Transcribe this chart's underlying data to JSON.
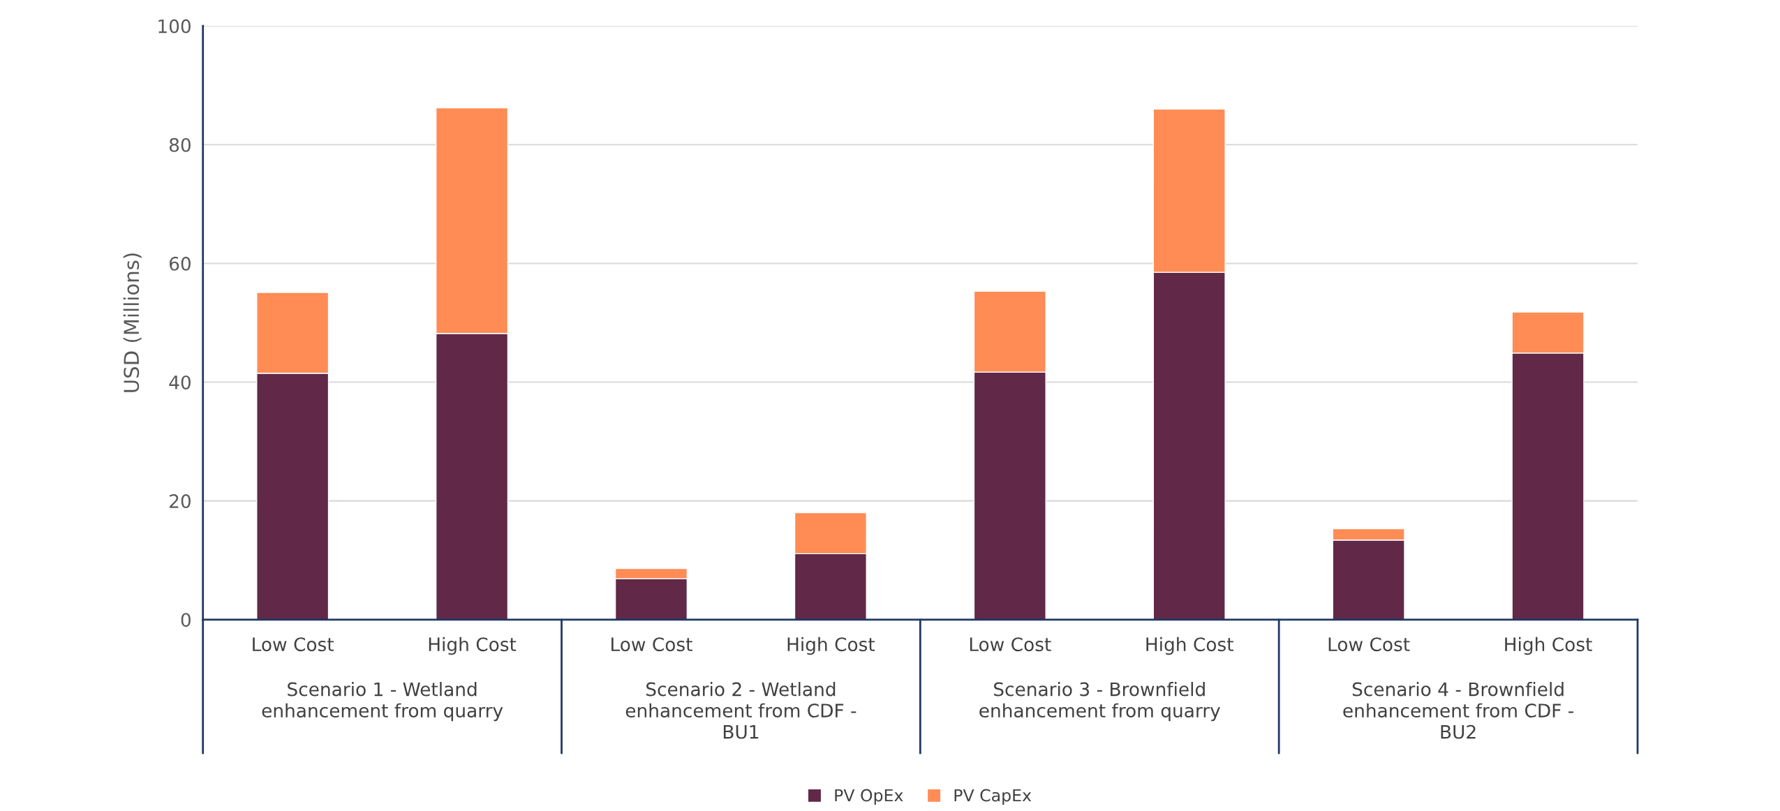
{
  "chart_data": {
    "type": "bar",
    "stacked": true,
    "ylabel": "USD (Millions)",
    "categories": [
      "Low Cost",
      "High Cost",
      "Low Cost",
      "High Cost",
      "Low Cost",
      "High Cost",
      "Low Cost",
      "High Cost"
    ],
    "annotations": [
      "Scenario 1 - Wetland\nenhancement from quarry",
      "Scenario 2 - Wetland\nenhancement from CDF -\nBU1",
      "Scenario 3 - Brownfield\nenhancement from quarry",
      "Scenario 4 - Brownfield\nenhancement from CDF -\nBU2"
    ],
    "series": [
      {
        "name": "PV OpEx",
        "color": "#612848",
        "values": [
          41.5,
          48.2,
          6.9,
          11.1,
          41.7,
          58.5,
          13.4,
          44.9
        ]
      },
      {
        "name": "PV CapEx",
        "color": "#ff8c55",
        "values": [
          13.6,
          38.0,
          1.7,
          6.9,
          13.6,
          27.5,
          1.9,
          6.9
        ]
      }
    ],
    "ylim": [
      0,
      100
    ],
    "yticks": [
      0,
      20,
      40,
      60,
      80,
      100
    ],
    "grid": "y",
    "legend": "bottom"
  }
}
